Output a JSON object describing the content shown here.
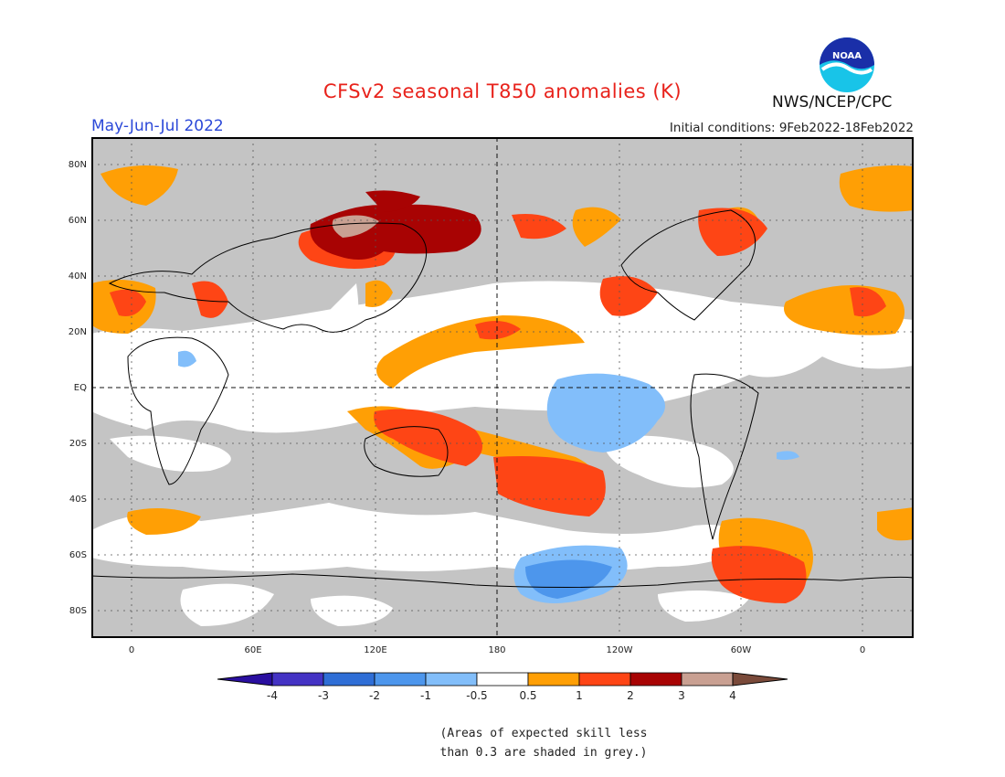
{
  "title": "CFSv2 seasonal T850 anomalies (K)",
  "season": "May-Jun-Jul 2022",
  "initial_conditions": "Initial conditions: 9Feb2022-18Feb2022",
  "agency": "NWS/NCEP/CPC",
  "logo_text": "NOAA",
  "lat_labels": [
    "80N",
    "60N",
    "40N",
    "20N",
    "EQ",
    "20S",
    "40S",
    "60S",
    "80S"
  ],
  "lon_labels": [
    "0",
    "60E",
    "120E",
    "180",
    "120W",
    "60W",
    "0"
  ],
  "colorbar": {
    "labels": [
      "-4",
      "-3",
      "-2",
      "-1",
      "-0.5",
      "0.5",
      "1",
      "2",
      "3",
      "4"
    ],
    "colors": [
      "#2a0fa0",
      "#4433c4",
      "#2f6ed6",
      "#4d96ec",
      "#82befa",
      "#ffffff",
      "#ff9f05",
      "#fe4515",
      "#a80303",
      "#c9a092",
      "#7a4a3a"
    ]
  },
  "note": [
    "(Areas of expected skill less",
    "than 0.3 are shaded in grey.)"
  ],
  "palette": {
    "grey": "#c4c4c4",
    "white": "#ffffff",
    "orange": "#ff9f05",
    "red": "#fe4515",
    "darkred": "#a80303",
    "tan": "#c9a092",
    "lightblue": "#82befa",
    "blue": "#4d96ec"
  }
}
